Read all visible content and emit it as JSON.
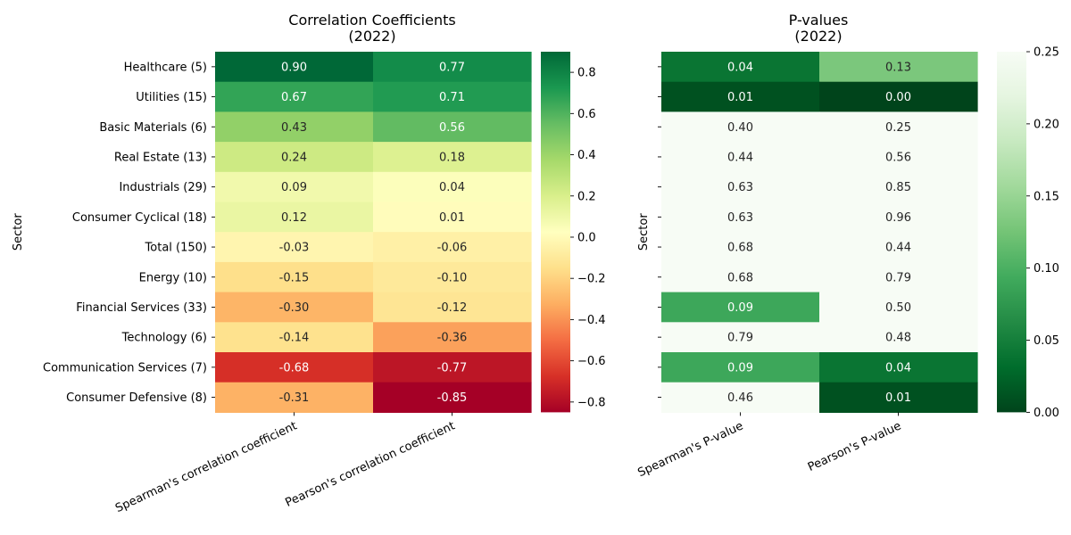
{
  "chart_data": [
    {
      "type": "heatmap",
      "title": "Correlation Coefficients\n(2022)",
      "xlabel": "",
      "ylabel": "Sector",
      "x_categories": [
        "Spearman's correlation coefficient",
        "Pearson's correlation coefficient"
      ],
      "y_categories": [
        "Healthcare (5)",
        "Utilities (15)",
        "Basic Materials (6)",
        "Real Estate (13)",
        "Industrials (29)",
        "Consumer Cyclical (18)",
        "Total (150)",
        "Energy (10)",
        "Financial Services (33)",
        "Technology (6)",
        "Communication Services (7)",
        "Consumer Defensive (8)"
      ],
      "values": [
        [
          0.9,
          0.77
        ],
        [
          0.67,
          0.71
        ],
        [
          0.43,
          0.56
        ],
        [
          0.24,
          0.18
        ],
        [
          0.09,
          0.04
        ],
        [
          0.12,
          0.01
        ],
        [
          -0.03,
          -0.06
        ],
        [
          -0.15,
          -0.1
        ],
        [
          -0.3,
          -0.12
        ],
        [
          -0.14,
          -0.36
        ],
        [
          -0.68,
          -0.77
        ],
        [
          -0.31,
          -0.85
        ]
      ],
      "labels": [
        [
          "0.90",
          "0.77"
        ],
        [
          "0.67",
          "0.71"
        ],
        [
          "0.43",
          "0.56"
        ],
        [
          "0.24",
          "0.18"
        ],
        [
          "0.09",
          "0.04"
        ],
        [
          "0.12",
          "0.01"
        ],
        [
          "-0.03",
          "-0.06"
        ],
        [
          "-0.15",
          "-0.10"
        ],
        [
          "-0.30",
          "-0.12"
        ],
        [
          "-0.14",
          "-0.36"
        ],
        [
          "-0.68",
          "-0.77"
        ],
        [
          "-0.31",
          "-0.85"
        ]
      ],
      "colormap": "RdYlGn",
      "vmin": -0.85,
      "vmax": 0.9,
      "colorbar_ticks": [
        "0.8",
        "0.6",
        "0.4",
        "0.2",
        "0.0",
        "−0.2",
        "−0.4",
        "−0.6",
        "−0.8"
      ],
      "colorbar_tick_values": [
        0.8,
        0.6,
        0.4,
        0.2,
        0.0,
        -0.2,
        -0.4,
        -0.6,
        -0.8
      ],
      "show_y_tick_labels": true
    },
    {
      "type": "heatmap",
      "title": "P-values\n(2022)",
      "xlabel": "",
      "ylabel": "Sector",
      "x_categories": [
        "Spearman's P-value",
        "Pearson's P-value"
      ],
      "y_categories": [
        "Healthcare (5)",
        "Utilities (15)",
        "Basic Materials (6)",
        "Real Estate (13)",
        "Industrials (29)",
        "Consumer Cyclical (18)",
        "Total (150)",
        "Energy (10)",
        "Financial Services (33)",
        "Technology (6)",
        "Communication Services (7)",
        "Consumer Defensive (8)"
      ],
      "values": [
        [
          0.04,
          0.13
        ],
        [
          0.01,
          0.0
        ],
        [
          0.4,
          0.25
        ],
        [
          0.44,
          0.56
        ],
        [
          0.63,
          0.85
        ],
        [
          0.63,
          0.96
        ],
        [
          0.68,
          0.44
        ],
        [
          0.68,
          0.79
        ],
        [
          0.09,
          0.5
        ],
        [
          0.79,
          0.48
        ],
        [
          0.09,
          0.04
        ],
        [
          0.46,
          0.01
        ]
      ],
      "labels": [
        [
          "0.04",
          "0.13"
        ],
        [
          "0.01",
          "0.00"
        ],
        [
          "0.40",
          "0.25"
        ],
        [
          "0.44",
          "0.56"
        ],
        [
          "0.63",
          "0.85"
        ],
        [
          "0.63",
          "0.96"
        ],
        [
          "0.68",
          "0.44"
        ],
        [
          "0.68",
          "0.79"
        ],
        [
          "0.09",
          "0.50"
        ],
        [
          "0.79",
          "0.48"
        ],
        [
          "0.09",
          "0.04"
        ],
        [
          "0.46",
          "0.01"
        ]
      ],
      "colormap": "Greens_r",
      "vmin": 0.0,
      "vmax": 0.25,
      "colorbar_ticks": [
        "0.25",
        "0.20",
        "0.15",
        "0.10",
        "0.05",
        "0.00"
      ],
      "colorbar_tick_values": [
        0.25,
        0.2,
        0.15,
        0.1,
        0.05,
        0.0
      ],
      "show_y_tick_labels": false
    }
  ]
}
